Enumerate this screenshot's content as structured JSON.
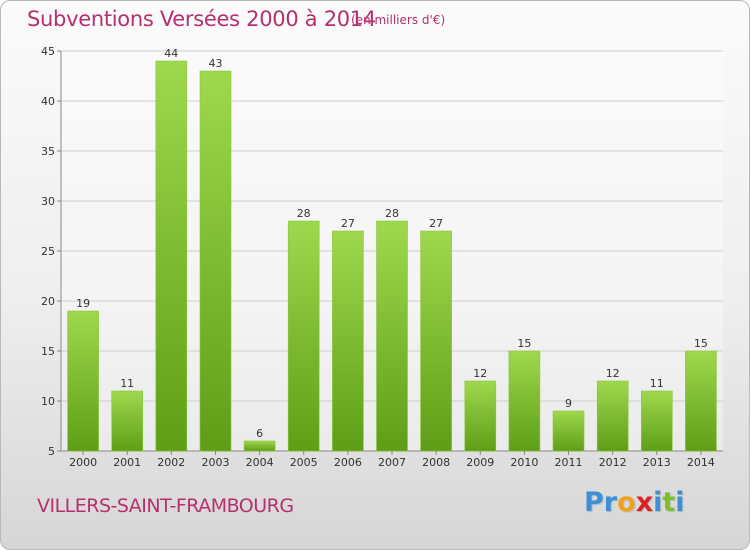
{
  "header": {
    "title": "Subventions Versées 2000 à 2014",
    "unit": "(en milliers d'€)"
  },
  "footer": {
    "town": "VILLERS-SAINT-FRAMBOURG",
    "logo_letters": [
      {
        "char": "P",
        "color": "#3d8fd6"
      },
      {
        "char": "r",
        "color": "#3d8fd6"
      },
      {
        "char": "o",
        "color": "#f0a020"
      },
      {
        "char": "x",
        "color": "#e02020"
      },
      {
        "char": "i",
        "color": "#3d8fd6"
      },
      {
        "char": "t",
        "color": "#7bbf2a"
      },
      {
        "char": "i",
        "color": "#3d8fd6"
      }
    ]
  },
  "colors": {
    "title": "#b5306e",
    "bar_top": "#9fd84e",
    "bar_bottom": "#5e9e16",
    "grid": "#cfcfcf",
    "axis": "#888888"
  },
  "chart_data": {
    "type": "bar",
    "categories": [
      "2000",
      "2001",
      "2002",
      "2003",
      "2004",
      "2005",
      "2006",
      "2007",
      "2008",
      "2009",
      "2010",
      "2011",
      "2012",
      "2013",
      "2014"
    ],
    "values": [
      19,
      11,
      44,
      43,
      6,
      28,
      27,
      28,
      27,
      12,
      15,
      9,
      12,
      11,
      15
    ],
    "ylim": [
      5,
      45
    ],
    "yticks": [
      5,
      10,
      15,
      20,
      25,
      30,
      35,
      40,
      45
    ],
    "grid": true,
    "data_labels": true
  }
}
